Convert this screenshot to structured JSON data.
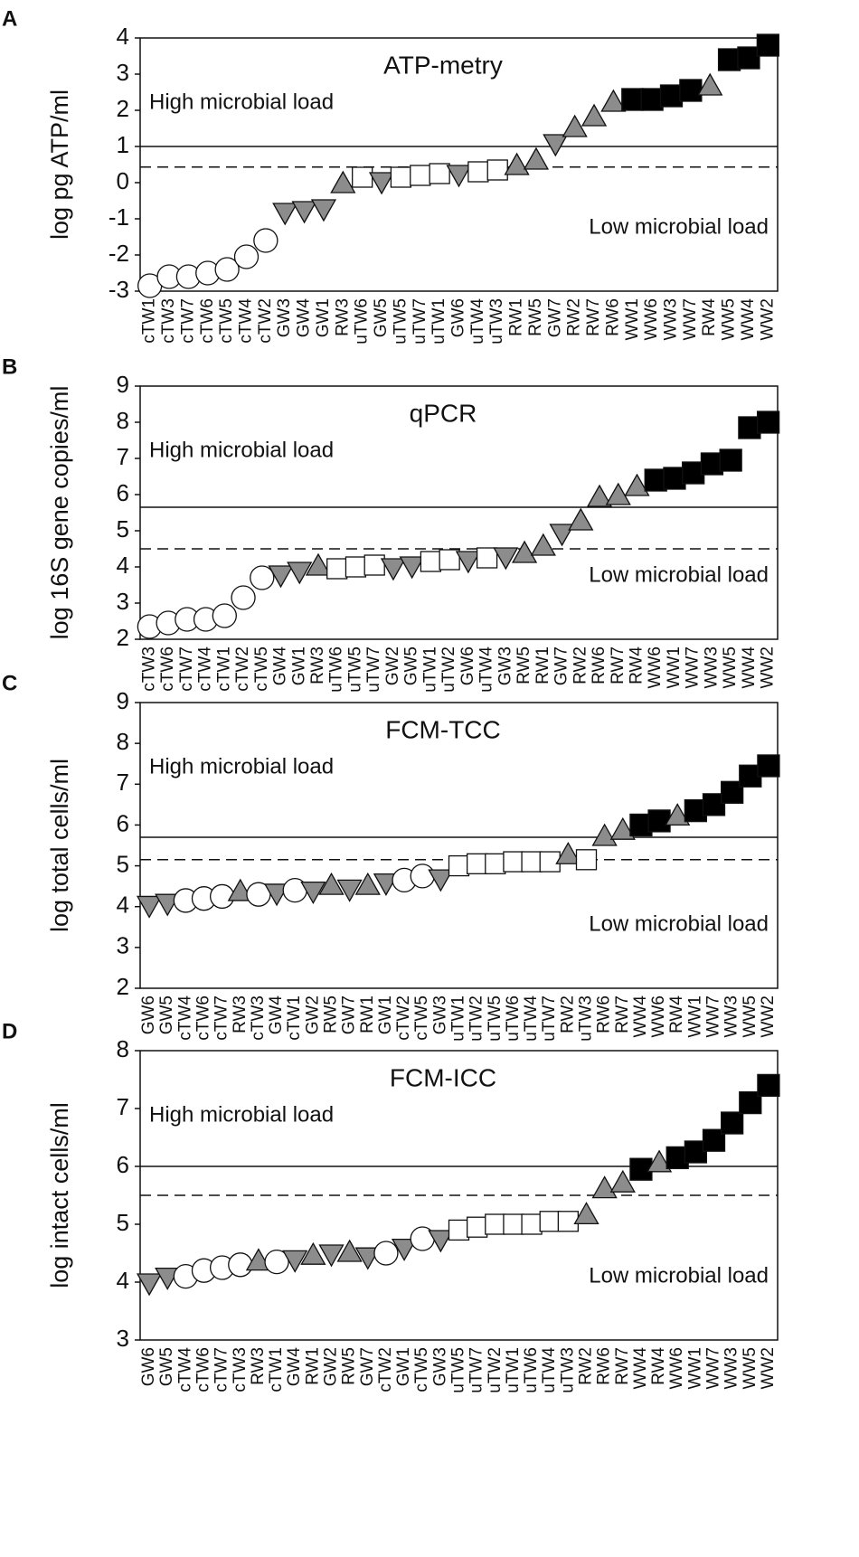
{
  "chart_data": [
    {
      "type": "dot",
      "panel_label": "A",
      "title": "ATP-metry",
      "ylabel": "log pg ATP/ml",
      "annotations": [
        "High microbial load",
        "Low microbial load"
      ],
      "categories": [
        "cTW1",
        "cTW3",
        "cTW7",
        "cTW6",
        "cTW5",
        "cTW4",
        "cTW2",
        "GW3",
        "GW4",
        "GW1",
        "RW3",
        "uTW6",
        "GW5",
        "uTW5",
        "uTW7",
        "uTW1",
        "GW6",
        "uTW4",
        "uTW3",
        "RW1",
        "RW5",
        "GW7",
        "RW2",
        "RW7",
        "RW6",
        "WW1",
        "WW6",
        "WW3",
        "WW7",
        "RW4",
        "WW5",
        "WW4",
        "WW2"
      ],
      "values": [
        -2.85,
        -2.6,
        -2.6,
        -2.5,
        -2.4,
        -2.05,
        -1.6,
        -0.8,
        -0.75,
        -0.7,
        -0.05,
        0.15,
        0.05,
        0.15,
        0.2,
        0.25,
        0.25,
        0.3,
        0.35,
        0.45,
        0.6,
        1.1,
        1.5,
        1.8,
        2.2,
        2.3,
        2.3,
        2.4,
        2.55,
        2.65,
        3.4,
        3.45,
        3.8
      ],
      "markers": [
        "circle",
        "circle",
        "circle",
        "circle",
        "circle",
        "circle",
        "circle",
        "down",
        "down",
        "down",
        "up",
        "square",
        "down",
        "square",
        "square",
        "square",
        "down",
        "square",
        "square",
        "up",
        "up",
        "down",
        "up",
        "up",
        "up",
        "filled",
        "filled",
        "filled",
        "filled",
        "up",
        "filled",
        "filled",
        "filled"
      ],
      "ylim": [
        -3,
        4
      ],
      "yticks": [
        -3,
        -2,
        -1,
        0,
        1,
        2,
        3,
        4
      ],
      "hlines": [
        {
          "value": 1,
          "style": "solid"
        },
        {
          "value": 0.43,
          "style": "dashed"
        }
      ]
    },
    {
      "type": "dot",
      "panel_label": "B",
      "title": "qPCR",
      "ylabel": "log 16S gene copies/ml",
      "annotations": [
        "High microbial load",
        "Low microbial load"
      ],
      "categories": [
        "cTW3",
        "cTW6",
        "cTW7",
        "cTW4",
        "cTW1",
        "cTW2",
        "cTW5",
        "GW4",
        "GW1",
        "RW3",
        "uTW6",
        "uTW5",
        "uTW7",
        "GW2",
        "GW5",
        "uTW1",
        "uTW2",
        "GW6",
        "uTW4",
        "GW3",
        "RW5",
        "RW1",
        "GW7",
        "RW2",
        "RW6",
        "RW7",
        "RW4",
        "WW6",
        "WW1",
        "WW7",
        "WW3",
        "WW5",
        "WW4",
        "WW2"
      ],
      "values": [
        2.35,
        2.45,
        2.55,
        2.55,
        2.65,
        3.15,
        3.7,
        3.8,
        3.9,
        4.0,
        3.95,
        4.0,
        4.05,
        4.0,
        4.05,
        4.15,
        4.2,
        4.2,
        4.25,
        4.3,
        4.35,
        4.55,
        4.95,
        5.25,
        5.9,
        5.95,
        6.2,
        6.4,
        6.45,
        6.6,
        6.85,
        6.95,
        7.85,
        8.0
      ],
      "markers": [
        "circle",
        "circle",
        "circle",
        "circle",
        "circle",
        "circle",
        "circle",
        "down",
        "down",
        "up",
        "square",
        "square",
        "square",
        "down",
        "down",
        "square",
        "square",
        "down",
        "square",
        "down",
        "up",
        "up",
        "down",
        "up",
        "up",
        "up",
        "up",
        "filled",
        "filled",
        "filled",
        "filled",
        "filled",
        "filled",
        "filled"
      ],
      "ylim": [
        2,
        9
      ],
      "yticks": [
        2,
        3,
        4,
        5,
        6,
        7,
        8,
        9
      ],
      "hlines": [
        {
          "value": 5.65,
          "style": "solid"
        },
        {
          "value": 4.5,
          "style": "dashed"
        }
      ]
    },
    {
      "type": "dot",
      "panel_label": "C",
      "title": "FCM-TCC",
      "ylabel": "log total cells/ml",
      "annotations": [
        "High microbial load",
        "Low microbial load"
      ],
      "categories": [
        "GW6",
        "GW5",
        "cTW4",
        "cTW6",
        "cTW7",
        "RW3",
        "cTW3",
        "GW4",
        "cTW1",
        "GW2",
        "RW5",
        "GW7",
        "RW1",
        "GW1",
        "cTW2",
        "cTW5",
        "GW3",
        "uTW1",
        "uTW2",
        "uTW5",
        "uTW6",
        "uTW4",
        "uTW7",
        "RW2",
        "uTW3",
        "RW6",
        "RW7",
        "WW4",
        "WW6",
        "RW4",
        "WW1",
        "WW7",
        "WW3",
        "WW5",
        "WW2"
      ],
      "values": [
        4.05,
        4.1,
        4.15,
        4.2,
        4.25,
        4.35,
        4.3,
        4.35,
        4.4,
        4.4,
        4.5,
        4.45,
        4.5,
        4.6,
        4.65,
        4.75,
        4.7,
        5.0,
        5.05,
        5.05,
        5.1,
        5.1,
        5.1,
        5.25,
        5.15,
        5.7,
        5.85,
        6.0,
        6.1,
        6.2,
        6.35,
        6.5,
        6.8,
        7.2,
        7.45
      ],
      "markers": [
        "down",
        "down",
        "circle",
        "circle",
        "circle",
        "up",
        "circle",
        "down",
        "circle",
        "down",
        "up",
        "down",
        "up",
        "down",
        "circle",
        "circle",
        "down",
        "square",
        "square",
        "square",
        "square",
        "square",
        "square",
        "up",
        "square",
        "up",
        "up",
        "filled",
        "filled",
        "up",
        "filled",
        "filled",
        "filled",
        "filled",
        "filled"
      ],
      "ylim": [
        2,
        9
      ],
      "yticks": [
        2,
        3,
        4,
        5,
        6,
        7,
        8,
        9
      ],
      "hlines": [
        {
          "value": 5.7,
          "style": "solid"
        },
        {
          "value": 5.15,
          "style": "dashed"
        }
      ]
    },
    {
      "type": "dot",
      "panel_label": "D",
      "title": "FCM-ICC",
      "ylabel": "log intact cells/ml",
      "annotations": [
        "High microbial load",
        "Low microbial load"
      ],
      "categories": [
        "GW6",
        "GW5",
        "cTW4",
        "cTW6",
        "cTW7",
        "cTW3",
        "RW3",
        "cTW1",
        "GW4",
        "RW1",
        "GW2",
        "RW5",
        "GW7",
        "cTW2",
        "GW1",
        "cTW5",
        "GW3",
        "uTW5",
        "uTW7",
        "uTW2",
        "uTW1",
        "uTW6",
        "uTW4",
        "uTW3",
        "RW2",
        "RW6",
        "RW7",
        "WW4",
        "RW4",
        "WW6",
        "WW1",
        "WW7",
        "WW3",
        "WW5",
        "WW2"
      ],
      "values": [
        4.0,
        4.1,
        4.1,
        4.2,
        4.25,
        4.3,
        4.35,
        4.35,
        4.4,
        4.45,
        4.5,
        4.5,
        4.45,
        4.5,
        4.6,
        4.75,
        4.75,
        4.9,
        4.95,
        5.0,
        5.0,
        5.0,
        5.05,
        5.05,
        5.15,
        5.6,
        5.7,
        5.95,
        6.05,
        6.15,
        6.25,
        6.45,
        6.75,
        7.1,
        7.4
      ],
      "markers": [
        "down",
        "down",
        "circle",
        "circle",
        "circle",
        "circle",
        "up",
        "circle",
        "down",
        "up",
        "down",
        "up",
        "down",
        "circle",
        "down",
        "circle",
        "down",
        "square",
        "square",
        "square",
        "square",
        "square",
        "square",
        "square",
        "up",
        "up",
        "up",
        "filled",
        "up",
        "filled",
        "filled",
        "filled",
        "filled",
        "filled",
        "filled"
      ],
      "ylim": [
        3,
        8
      ],
      "yticks": [
        3,
        4,
        5,
        6,
        7,
        8
      ],
      "hlines": [
        {
          "value": 6.0,
          "style": "solid"
        },
        {
          "value": 5.5,
          "style": "dashed"
        }
      ]
    }
  ]
}
